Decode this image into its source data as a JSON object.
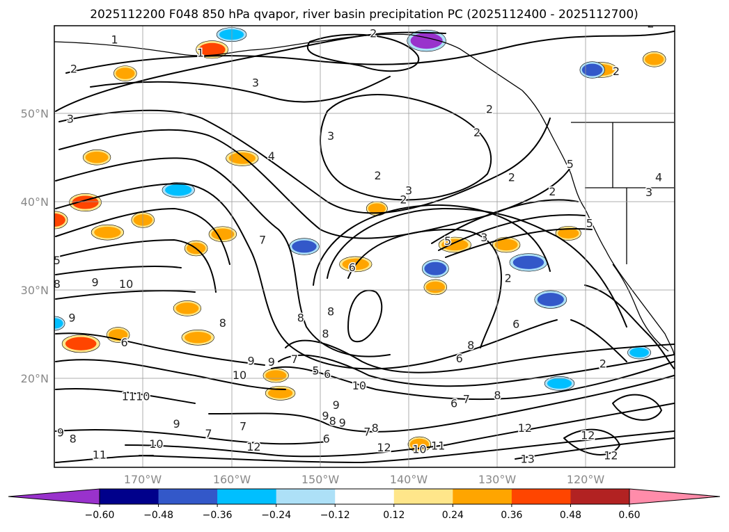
{
  "title": "2025112200 F048 850 hPa qvapor, river basin precipitation PC (2025112400 - 2025112700)",
  "map": {
    "lat_labels": [
      "50°N",
      "40°N",
      "30°N",
      "20°N"
    ],
    "lon_labels": [
      "170°W",
      "160°W",
      "150°W",
      "140°W",
      "130°W",
      "120°W"
    ],
    "gridlines": true,
    "projection": "rectangular lat/lon",
    "contour_color": "#000000",
    "contour_labels": [
      {
        "text": "1",
        "lon": -173.2,
        "lat": 58.0
      },
      {
        "text": "2",
        "lon": -177.8,
        "lat": 54.7
      },
      {
        "text": "1",
        "lon": -163.5,
        "lat": 56.5
      },
      {
        "text": "3",
        "lon": -157.3,
        "lat": 53.1
      },
      {
        "text": "3",
        "lon": -178.2,
        "lat": 49.0
      },
      {
        "text": "2",
        "lon": -144.0,
        "lat": 58.7
      },
      {
        "text": "2",
        "lon": -112.7,
        "lat": 59.8
      },
      {
        "text": "2",
        "lon": -116.6,
        "lat": 54.4
      },
      {
        "text": "2",
        "lon": -130.9,
        "lat": 50.1
      },
      {
        "text": "2",
        "lon": -132.3,
        "lat": 47.5
      },
      {
        "text": "3",
        "lon": -148.8,
        "lat": 47.1
      },
      {
        "text": "4",
        "lon": -155.5,
        "lat": 44.8
      },
      {
        "text": "2",
        "lon": -143.5,
        "lat": 42.6
      },
      {
        "text": "2",
        "lon": -128.4,
        "lat": 42.4
      },
      {
        "text": "2",
        "lon": -140.6,
        "lat": 39.9
      },
      {
        "text": "3",
        "lon": -140.0,
        "lat": 40.9
      },
      {
        "text": "2",
        "lon": -123.8,
        "lat": 40.8
      },
      {
        "text": "5",
        "lon": -121.8,
        "lat": 43.9
      },
      {
        "text": "4",
        "lon": -111.8,
        "lat": 42.4
      },
      {
        "text": "3",
        "lon": -112.9,
        "lat": 40.7
      },
      {
        "text": "5",
        "lon": -119.6,
        "lat": 37.2
      },
      {
        "text": "5",
        "lon": -135.6,
        "lat": 35.2
      },
      {
        "text": "3",
        "lon": -131.5,
        "lat": 35.6
      },
      {
        "text": "7",
        "lon": -156.5,
        "lat": 35.3
      },
      {
        "text": "5",
        "lon": -179.7,
        "lat": 33.0
      },
      {
        "text": "8",
        "lon": -179.7,
        "lat": 30.3
      },
      {
        "text": "9",
        "lon": -175.4,
        "lat": 30.5
      },
      {
        "text": "10",
        "lon": -171.9,
        "lat": 30.3
      },
      {
        "text": "6",
        "lon": -146.4,
        "lat": 32.2
      },
      {
        "text": "2",
        "lon": -128.8,
        "lat": 31.0
      },
      {
        "text": "9",
        "lon": -178.0,
        "lat": 26.5
      },
      {
        "text": "8",
        "lon": -161.0,
        "lat": 25.9
      },
      {
        "text": "8",
        "lon": -152.2,
        "lat": 26.5
      },
      {
        "text": "8",
        "lon": -148.8,
        "lat": 27.2
      },
      {
        "text": "8",
        "lon": -149.4,
        "lat": 24.7
      },
      {
        "text": "6",
        "lon": -127.9,
        "lat": 25.8
      },
      {
        "text": "6",
        "lon": -172.1,
        "lat": 23.7
      },
      {
        "text": "8",
        "lon": -133.0,
        "lat": 23.4
      },
      {
        "text": "9",
        "lon": -157.8,
        "lat": 21.6
      },
      {
        "text": "9",
        "lon": -155.5,
        "lat": 21.5
      },
      {
        "text": "7",
        "lon": -152.9,
        "lat": 21.8
      },
      {
        "text": "5",
        "lon": -150.5,
        "lat": 20.5
      },
      {
        "text": "6",
        "lon": -149.2,
        "lat": 20.1
      },
      {
        "text": "6",
        "lon": -134.3,
        "lat": 21.9
      },
      {
        "text": "2",
        "lon": -118.1,
        "lat": 21.3
      },
      {
        "text": "10",
        "lon": -159.1,
        "lat": 20.0
      },
      {
        "text": "10",
        "lon": -145.6,
        "lat": 18.8
      },
      {
        "text": "11",
        "lon": -171.6,
        "lat": 17.6
      },
      {
        "text": "10",
        "lon": -170.0,
        "lat": 17.6
      },
      {
        "text": "6",
        "lon": -134.9,
        "lat": 16.8
      },
      {
        "text": "7",
        "lon": -133.5,
        "lat": 17.3
      },
      {
        "text": "8",
        "lon": -130.0,
        "lat": 17.7
      },
      {
        "text": "9",
        "lon": -148.2,
        "lat": 16.6
      },
      {
        "text": "9",
        "lon": -149.4,
        "lat": 15.4
      },
      {
        "text": "8",
        "lon": -148.6,
        "lat": 14.8
      },
      {
        "text": "9",
        "lon": -147.5,
        "lat": 14.6
      },
      {
        "text": "8",
        "lon": -143.8,
        "lat": 14.0
      },
      {
        "text": "7",
        "lon": -144.7,
        "lat": 13.6
      },
      {
        "text": "6",
        "lon": -149.3,
        "lat": 12.8
      },
      {
        "text": "7",
        "lon": -158.7,
        "lat": 14.2
      },
      {
        "text": "9",
        "lon": -166.2,
        "lat": 14.5
      },
      {
        "text": "7",
        "lon": -162.6,
        "lat": 13.4
      },
      {
        "text": "9",
        "lon": -179.3,
        "lat": 13.5
      },
      {
        "text": "8",
        "lon": -177.9,
        "lat": 12.8
      },
      {
        "text": "12",
        "lon": -126.9,
        "lat": 14.0
      },
      {
        "text": "10",
        "lon": -168.5,
        "lat": 12.2
      },
      {
        "text": "12",
        "lon": -157.5,
        "lat": 11.9
      },
      {
        "text": "12",
        "lon": -142.8,
        "lat": 11.8
      },
      {
        "text": "10",
        "lon": -138.8,
        "lat": 11.6
      },
      {
        "text": "11",
        "lon": -136.7,
        "lat": 12.0
      },
      {
        "text": "11",
        "lon": -174.9,
        "lat": 11.0
      },
      {
        "text": "13",
        "lon": -126.6,
        "lat": 10.5
      },
      {
        "text": "12",
        "lon": -117.2,
        "lat": 10.9
      },
      {
        "text": "12",
        "lon": -119.8,
        "lat": 13.2
      }
    ],
    "precip_patches": [
      {
        "lon": -180.0,
        "lat": 38.0,
        "value": 0.45
      },
      {
        "lon": -176.5,
        "lat": 40.0,
        "value": 0.45
      },
      {
        "lon": -174.0,
        "lat": 36.6,
        "value": 0.35
      },
      {
        "lon": -170.0,
        "lat": 38.0,
        "value": 0.35
      },
      {
        "lon": -175.2,
        "lat": 45.1,
        "value": 0.35
      },
      {
        "lon": -177.0,
        "lat": 24.0,
        "value": 0.45
      },
      {
        "lon": -172.8,
        "lat": 25.0,
        "value": 0.35
      },
      {
        "lon": -165.0,
        "lat": 28.0,
        "value": 0.35
      },
      {
        "lon": -163.8,
        "lat": 24.7,
        "value": 0.35
      },
      {
        "lon": -164.0,
        "lat": 34.8,
        "value": 0.35
      },
      {
        "lon": -161.0,
        "lat": 36.4,
        "value": 0.35
      },
      {
        "lon": -158.8,
        "lat": 45.0,
        "value": 0.35
      },
      {
        "lon": -172.0,
        "lat": 54.6,
        "value": 0.35
      },
      {
        "lon": -162.2,
        "lat": 57.3,
        "value": 0.45
      },
      {
        "lon": -146.0,
        "lat": 33.0,
        "value": 0.35
      },
      {
        "lon": -143.6,
        "lat": 39.3,
        "value": 0.3
      },
      {
        "lon": -129.0,
        "lat": 35.2,
        "value": 0.35
      },
      {
        "lon": -134.8,
        "lat": 35.2,
        "value": 0.35
      },
      {
        "lon": -137.0,
        "lat": 30.4,
        "value": 0.35
      },
      {
        "lon": -155.0,
        "lat": 20.4,
        "value": 0.3
      },
      {
        "lon": -154.5,
        "lat": 18.4,
        "value": 0.3
      },
      {
        "lon": -138.8,
        "lat": 12.6,
        "value": 0.35
      },
      {
        "lon": -122.0,
        "lat": 36.5,
        "value": 0.3
      },
      {
        "lon": -118.3,
        "lat": 55.0,
        "value": 0.35
      },
      {
        "lon": -112.3,
        "lat": 56.2,
        "value": 0.35
      },
      {
        "lon": -124.0,
        "lat": 29.0,
        "value": -0.45
      },
      {
        "lon": -126.5,
        "lat": 33.2,
        "value": -0.45
      },
      {
        "lon": -137.0,
        "lat": 32.5,
        "value": -0.45
      },
      {
        "lon": -151.8,
        "lat": 35.0,
        "value": -0.4
      },
      {
        "lon": -166.0,
        "lat": 41.4,
        "value": -0.35
      },
      {
        "lon": -119.3,
        "lat": 55.0,
        "value": -0.4
      },
      {
        "lon": -138.0,
        "lat": 58.3,
        "value": -0.6
      },
      {
        "lon": -160.0,
        "lat": 59.0,
        "value": -0.3
      },
      {
        "lon": -180.0,
        "lat": 26.3,
        "value": -0.3
      },
      {
        "lon": -114.0,
        "lat": 23.0,
        "value": -0.25
      },
      {
        "lon": -123.0,
        "lat": 19.5,
        "value": -0.3
      }
    ]
  },
  "colorbar": {
    "labels": [
      "-0.60",
      "-0.48",
      "-0.36",
      "-0.24",
      "-0.12",
      "0.12",
      "0.24",
      "0.36",
      "0.48",
      "0.60"
    ],
    "extend": "both",
    "colors": [
      "#9932CC",
      "#00008B",
      "#3358C9",
      "#00BFFF",
      "#ADE0F7",
      "#FFFFFF",
      "#FFE68A",
      "#FFA500",
      "#FF4500",
      "#B22222",
      "#FF8CAA"
    ]
  },
  "colors": {
    "gridline": "#9a9a9a",
    "coastline": "#000000",
    "tick_label": "#888888"
  }
}
